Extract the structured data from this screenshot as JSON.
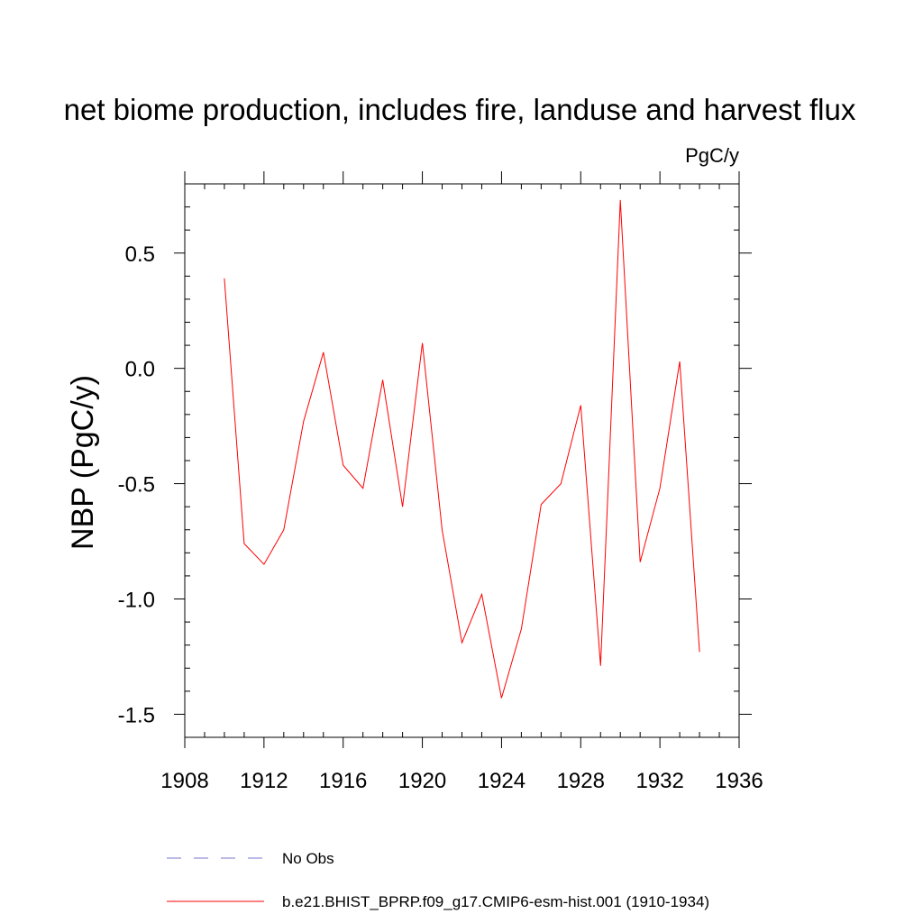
{
  "chart_data": {
    "type": "line",
    "title": "net biome production, includes fire, landuse and harvest flux",
    "units": "PgC/y",
    "xlabel": "",
    "ylabel": "NBP  (PgC/y)",
    "xlim": [
      1908,
      1936
    ],
    "ylim": [
      -1.6,
      0.8
    ],
    "x_ticks": [
      1908,
      1912,
      1916,
      1920,
      1924,
      1928,
      1932,
      1936
    ],
    "x_tick_labels": [
      "1908",
      "1912",
      "1916",
      "1920",
      "1924",
      "1928",
      "1932",
      "1936"
    ],
    "y_ticks": [
      -1.5,
      -1.0,
      -0.5,
      0.0,
      0.5
    ],
    "y_tick_labels": [
      "-1.5",
      "-1.0",
      "-0.5",
      "0.0",
      "0.5"
    ],
    "series": [
      {
        "name": "b.e21.BHIST_BPRP.f09_g17.CMIP6-esm-hist.001 (1910-1934)",
        "color": "#ff0000",
        "style": "solid",
        "x": [
          1910,
          1911,
          1912,
          1913,
          1914,
          1915,
          1916,
          1917,
          1918,
          1919,
          1920,
          1921,
          1922,
          1923,
          1924,
          1925,
          1926,
          1927,
          1928,
          1929,
          1930,
          1931,
          1932,
          1933,
          1934
        ],
        "values": [
          0.39,
          -0.76,
          -0.85,
          -0.7,
          -0.23,
          0.07,
          -0.42,
          -0.52,
          -0.05,
          -0.6,
          0.11,
          -0.7,
          -1.19,
          -0.98,
          -1.43,
          -1.13,
          -0.59,
          -0.5,
          -0.16,
          -1.29,
          0.73,
          -0.84,
          -0.52,
          0.03,
          -1.23
        ]
      }
    ],
    "legend": [
      {
        "label": "No Obs",
        "color": "#7777cc",
        "style": "dashed"
      },
      {
        "label": "b.e21.BHIST_BPRP.f09_g17.CMIP6-esm-hist.001 (1910-1934)",
        "color": "#ff0000",
        "style": "solid"
      }
    ],
    "legend_position": "bottom-center",
    "grid": false
  }
}
